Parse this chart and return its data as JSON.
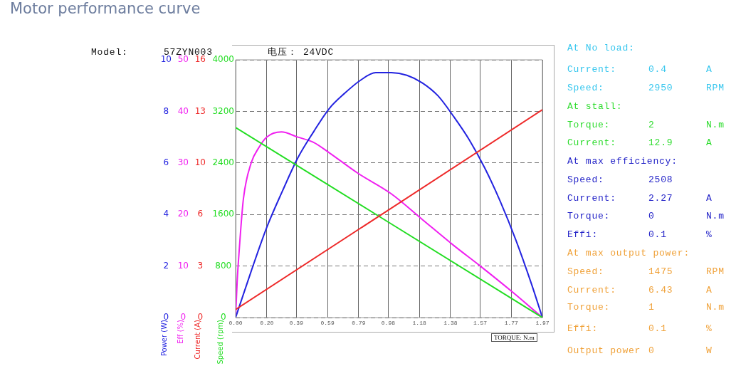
{
  "chart_data": [
    {
      "type": "line",
      "title": "Motor performance curve",
      "xlabel": "TORQUE: N.m",
      "ylabel": "Power (W)",
      "y2label": "Eff (%)",
      "xlim": [
        0,
        1.97
      ],
      "xticks": [
        {
          "value": 0,
          "label": "0.00"
        },
        {
          "value": 0.2,
          "label": "0.20"
        },
        0.39,
        0.59,
        0.79,
        0.98,
        1.18,
        1.38,
        1.57,
        1.77,
        1.97
      ],
      "ylim": [
        0,
        10
      ],
      "yticks": [
        0,
        2,
        4,
        6,
        8,
        10
      ],
      "y2lim": [
        0,
        50
      ],
      "y2ticks": [
        0,
        10,
        20,
        30,
        40,
        50
      ],
      "grid": true,
      "series": [
        {
          "color": "#2323e0",
          "x": [
            0,
            0.1,
            0.2,
            0.3,
            0.4,
            0.5,
            0.6,
            0.7,
            0.8,
            0.9,
            1.0,
            1.1,
            1.2,
            1.3,
            1.4,
            1.5,
            1.6,
            1.7,
            1.8,
            1.9,
            1.97
          ],
          "values": [
            0,
            1.8,
            3.5,
            4.9,
            6.2,
            7.2,
            8.1,
            8.7,
            9.2,
            9.5,
            9.5,
            9.4,
            9.1,
            8.6,
            7.8,
            6.9,
            5.8,
            4.5,
            3.0,
            1.3,
            0
          ]
        },
        {
          "color": "#f020f0",
          "axis": "y2",
          "x": [
            0,
            0.01,
            0.023,
            0.05,
            0.1,
            0.15,
            0.2,
            0.294,
            0.4,
            0.5,
            0.6,
            0.785,
            1.0,
            1.2,
            1.4,
            1.571,
            1.776,
            1.97
          ],
          "values": [
            0,
            7,
            13,
            23,
            30,
            33,
            35,
            36,
            35,
            34,
            32,
            28,
            24,
            19,
            14,
            10,
            5,
            0
          ]
        }
      ],
      "annotations": [
        "Model:",
        "57ZYN003",
        "电压： 24VDC",
        "At No load:",
        "Current:  0.4  A",
        "Speed:  2950  RPM",
        "At stall:",
        "Torque:  2  N.m",
        "Current:  12.9  A",
        "At max efficiency:",
        "Speed:  2508",
        "Current:  2.27  A",
        "Torque:  0  N.m",
        "Effi:  0.1  %",
        "At max output power:",
        "Speed:  1475  RPM",
        "Current:  6.43  A",
        "Torque:  1  N.m",
        "Effi:  0.1  %",
        "Output power  0  W"
      ]
    },
    {
      "type": "line",
      "ylabel": "Current (A)",
      "y2label": "Speed (rpm)",
      "tick_labels": "y",
      "xlim": [
        0,
        1.97
      ],
      "ylim": [
        0,
        16
      ],
      "yticks": [
        0,
        {
          "value": 3.2,
          "label": "3"
        },
        {
          "value": 6.4,
          "label": "6"
        },
        {
          "value": 9.6,
          "label": "10"
        },
        {
          "value": 12.8,
          "label": "13"
        },
        16
      ],
      "y2lim": [
        0,
        4000
      ],
      "y2ticks": [
        0,
        800,
        1600,
        2400,
        3200,
        4000
      ],
      "series": [
        {
          "color": "#ee2a2a",
          "x": [
            0,
            1.97
          ],
          "values": [
            0.5,
            12.9
          ]
        },
        {
          "color": "#22dd22",
          "axis": "y2",
          "x": [
            0,
            1.97
          ],
          "values": [
            2950,
            0
          ]
        }
      ]
    }
  ]
}
